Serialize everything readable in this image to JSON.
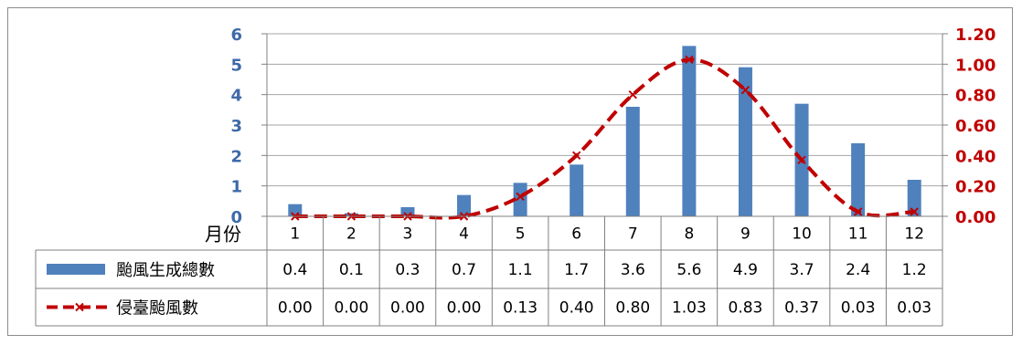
{
  "chart_data": {
    "type": "bar",
    "category_label": "月份",
    "categories": [
      "1",
      "2",
      "3",
      "4",
      "5",
      "6",
      "7",
      "8",
      "9",
      "10",
      "11",
      "12"
    ],
    "series": [
      {
        "name": "颱風生成總數",
        "type": "bar",
        "axis": "left",
        "color": "#4f81bd",
        "values": [
          0.4,
          0.1,
          0.3,
          0.7,
          1.1,
          1.7,
          3.6,
          5.6,
          4.9,
          3.7,
          2.4,
          1.2
        ],
        "labels": [
          "0.4",
          "0.1",
          "0.3",
          "0.7",
          "1.1",
          "1.7",
          "3.6",
          "5.6",
          "4.9",
          "3.7",
          "2.4",
          "1.2"
        ]
      },
      {
        "name": "侵臺颱風數",
        "type": "line",
        "style": "dashed",
        "axis": "right",
        "color": "#c00000",
        "values": [
          0.0,
          0.0,
          0.0,
          0.0,
          0.13,
          0.4,
          0.8,
          1.03,
          0.83,
          0.37,
          0.03,
          0.03
        ],
        "labels": [
          "0.00",
          "0.00",
          "0.00",
          "0.00",
          "0.13",
          "0.40",
          "0.80",
          "1.03",
          "0.83",
          "0.37",
          "0.03",
          "0.03"
        ]
      }
    ],
    "y_left": {
      "ylim": [
        0,
        6
      ],
      "ticks": [
        "0",
        "1",
        "2",
        "3",
        "4",
        "5",
        "6"
      ],
      "color": "#3f6aa8"
    },
    "y_right": {
      "ylim": [
        0,
        1.2
      ],
      "ticks": [
        "0.00",
        "0.20",
        "0.40",
        "0.60",
        "0.80",
        "1.00",
        "1.20"
      ],
      "color": "#c00000"
    },
    "grid": true,
    "data_table": true
  }
}
